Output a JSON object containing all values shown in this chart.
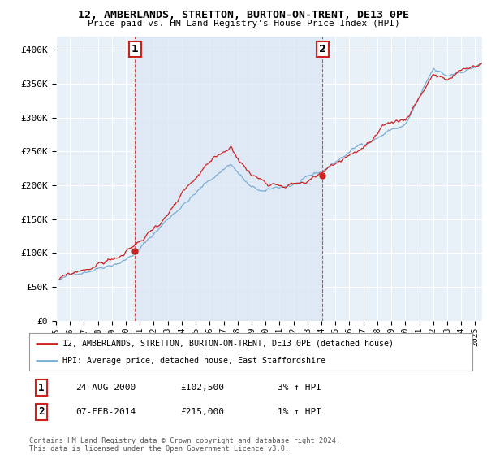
{
  "title": "12, AMBERLANDS, STRETTON, BURTON-ON-TRENT, DE13 0PE",
  "subtitle": "Price paid vs. HM Land Registry's House Price Index (HPI)",
  "ylabel_ticks": [
    "£0",
    "£50K",
    "£100K",
    "£150K",
    "£200K",
    "£250K",
    "£300K",
    "£350K",
    "£400K"
  ],
  "ytick_vals": [
    0,
    50000,
    100000,
    150000,
    200000,
    250000,
    300000,
    350000,
    400000
  ],
  "ylim": [
    0,
    420000
  ],
  "xlim_start": 1995.25,
  "xlim_end": 2025.5,
  "background_color": "#ffffff",
  "plot_bg_color": "#e8f0f8",
  "grid_color": "#ffffff",
  "hpi_line_color": "#7aadd4",
  "price_line_color": "#cc2222",
  "shade_color": "#dce8f5",
  "sale1_x": 2000.65,
  "sale1_y": 102500,
  "sale2_x": 2014.08,
  "sale2_y": 215000,
  "legend_line1": "12, AMBERLANDS, STRETTON, BURTON-ON-TRENT, DE13 0PE (detached house)",
  "legend_line2": "HPI: Average price, detached house, East Staffordshire",
  "annotation1_date": "24-AUG-2000",
  "annotation1_price": "£102,500",
  "annotation1_hpi": "3% ↑ HPI",
  "annotation2_date": "07-FEB-2014",
  "annotation2_price": "£215,000",
  "annotation2_hpi": "1% ↑ HPI",
  "footnote": "Contains HM Land Registry data © Crown copyright and database right 2024.\nThis data is licensed under the Open Government Licence v3.0.",
  "xtick_years": [
    1995,
    1996,
    1997,
    1998,
    1999,
    2000,
    2001,
    2002,
    2003,
    2004,
    2005,
    2006,
    2007,
    2008,
    2009,
    2010,
    2011,
    2012,
    2013,
    2014,
    2015,
    2016,
    2017,
    2018,
    2019,
    2020,
    2021,
    2022,
    2023,
    2024,
    2025
  ]
}
